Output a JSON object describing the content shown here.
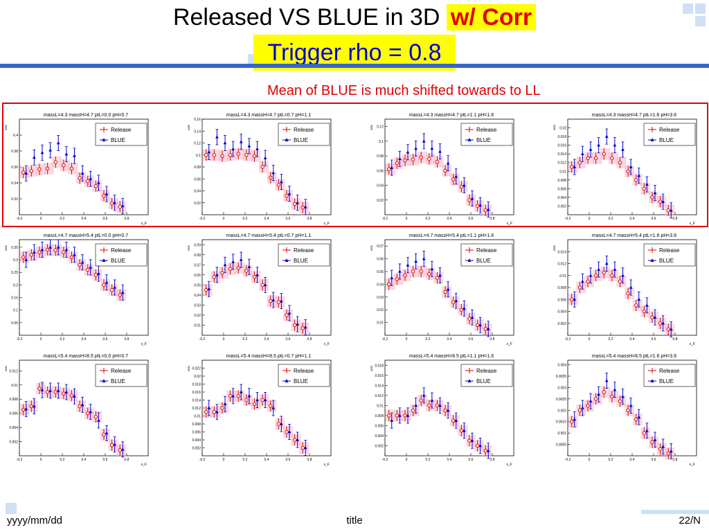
{
  "slide": {
    "title_main": "Released VS BLUE in 3D",
    "title_corr": "w/ Corr",
    "subtitle": "Trigger rho = 0.8",
    "note": "Mean of BLUE is much shifted towards to LL"
  },
  "footer": {
    "date": "yyyy/mm/dd",
    "title": "title",
    "page": "22/N"
  },
  "colors": {
    "release": "#e00000",
    "blue": "#0000cc",
    "band": "#f6b8c8",
    "highlight": "#ffff00",
    "accent": "#3a66c8"
  },
  "chart_data": [
    {
      "type": "scatter",
      "title": "massL=4.3 massH=4.7 ptL=0.0 pH=0.7",
      "ylabel": "sstc",
      "xlabel": "x_F",
      "xlim": [
        -0.2,
        1.0
      ],
      "ylim": [
        0.3,
        0.42
      ],
      "ytick_labels": [
        "0.32",
        "0.34",
        "0.36",
        "0.38",
        "0.4"
      ],
      "series": [
        {
          "name": "Release",
          "y": [
            0.353,
            0.355,
            0.357,
            0.358,
            0.366,
            0.362,
            0.358,
            0.346,
            0.342,
            0.336,
            0.324,
            0.314,
            0.31
          ]
        },
        {
          "name": "BLUE",
          "y": [
            0.352,
            0.372,
            0.378,
            0.381,
            0.39,
            0.376,
            0.374,
            0.352,
            0.345,
            0.34,
            0.326,
            0.315,
            0.311
          ]
        }
      ]
    },
    {
      "type": "scatter",
      "title": "massL=4.3 massH=4.7 ptL=0.7 pH=1.1",
      "ylabel": "sstc",
      "xlabel": "x_F",
      "xlim": [
        -0.2,
        1.0
      ],
      "ylim": [
        0,
        0.16
      ],
      "ytick_labels": [
        "0.02",
        "0.04",
        "0.06",
        "0.08",
        "0.1",
        "0.12",
        "0.14",
        "0.16"
      ],
      "series": [
        {
          "name": "Release",
          "y": [
            0.1,
            0.1,
            0.098,
            0.1,
            0.102,
            0.1,
            0.098,
            0.08,
            0.062,
            0.05,
            0.032,
            0.018,
            0.012
          ]
        },
        {
          "name": "BLUE",
          "y": [
            0.105,
            0.13,
            0.12,
            0.11,
            0.122,
            0.115,
            0.11,
            0.095,
            0.07,
            0.055,
            0.035,
            0.02,
            0.013
          ]
        }
      ]
    },
    {
      "type": "scatter",
      "title": "massL=4.3 massH=4.7 ptL=1.1 pH=1.6",
      "ylabel": "sstc",
      "xlabel": "x_F",
      "xlim": [
        -0.2,
        1.0
      ],
      "ylim": [
        0,
        0.13
      ],
      "ytick_labels": [
        "0.02",
        "0.04",
        "0.06",
        "0.08",
        "0.1",
        "0.12"
      ],
      "series": [
        {
          "name": "Release",
          "y": [
            0.062,
            0.07,
            0.074,
            0.075,
            0.078,
            0.076,
            0.072,
            0.06,
            0.048,
            0.038,
            0.02,
            0.012,
            0.006
          ]
        },
        {
          "name": "BLUE",
          "y": [
            0.064,
            0.076,
            0.085,
            0.09,
            0.1,
            0.09,
            0.086,
            0.07,
            0.052,
            0.04,
            0.022,
            0.013,
            0.007
          ]
        }
      ]
    },
    {
      "type": "scatter",
      "title": "massL=4.3 massH=4.7 ptL=1.6 pH=3.6",
      "ylabel": "sstc",
      "xlabel": "x_F",
      "xlim": [
        -0.2,
        1.0
      ],
      "ylim": [
        0,
        0.022
      ],
      "ytick_labels": [
        "0.002",
        "0.004",
        "0.006",
        "0.008",
        "0.01",
        "0.012",
        "0.014",
        "0.016",
        "0.018",
        "0.02"
      ],
      "series": [
        {
          "name": "Release",
          "y": [
            0.011,
            0.012,
            0.013,
            0.013,
            0.014,
            0.013,
            0.012,
            0.01,
            0.008,
            0.006,
            0.004,
            0.003,
            0.001
          ]
        },
        {
          "name": "BLUE",
          "y": [
            0.011,
            0.014,
            0.015,
            0.016,
            0.018,
            0.016,
            0.015,
            0.011,
            0.009,
            0.007,
            0.005,
            0.003,
            0.001
          ]
        }
      ]
    },
    {
      "type": "scatter",
      "title": "massL=4.7 massH=5.4 ptL=0.0 pH=0.7",
      "ylabel": "sstc",
      "xlabel": "x_F",
      "xlim": [
        -0.2,
        1.0
      ],
      "ylim": [
        0,
        0.38
      ],
      "ytick_labels": [
        "0.05",
        "0.1",
        "0.15",
        "0.2",
        "0.25",
        "0.3",
        "0.35"
      ],
      "series": [
        {
          "name": "Release",
          "y": [
            0.31,
            0.32,
            0.33,
            0.34,
            0.338,
            0.33,
            0.31,
            0.28,
            0.26,
            0.24,
            0.2,
            0.18,
            0.16
          ]
        },
        {
          "name": "BLUE",
          "y": [
            0.3,
            0.33,
            0.34,
            0.35,
            0.35,
            0.34,
            0.32,
            0.29,
            0.27,
            0.245,
            0.21,
            0.19,
            0.17
          ]
        }
      ]
    },
    {
      "type": "scatter",
      "title": "massL=4.7 massH=5.4 ptL=0.7 pH=1.1",
      "ylabel": "sstc",
      "xlabel": "x_F",
      "xlim": [
        -0.2,
        1.0
      ],
      "ylim": [
        0,
        0.095
      ],
      "ytick_labels": [
        "0.01",
        "0.02",
        "0.03",
        "0.04",
        "0.05",
        "0.06",
        "0.07",
        "0.08",
        "0.09"
      ],
      "series": [
        {
          "name": "Release",
          "y": [
            0.045,
            0.058,
            0.062,
            0.066,
            0.067,
            0.064,
            0.058,
            0.05,
            0.034,
            0.033,
            0.02,
            0.01,
            0.007
          ]
        },
        {
          "name": "BLUE",
          "y": [
            0.046,
            0.06,
            0.07,
            0.073,
            0.075,
            0.068,
            0.06,
            0.05,
            0.035,
            0.034,
            0.022,
            0.011,
            0.008
          ]
        }
      ]
    },
    {
      "type": "scatter",
      "title": "massL=4.7 massH=5.4 ptL=1.1 pH=1.6",
      "ylabel": "sstc",
      "xlabel": "x_F",
      "xlim": [
        -0.2,
        1.0
      ],
      "ylim": [
        0,
        0.075
      ],
      "ytick_labels": [
        "0.01",
        "0.02",
        "0.03",
        "0.04",
        "0.05",
        "0.06",
        "0.07"
      ],
      "series": [
        {
          "name": "Release",
          "y": [
            0.04,
            0.044,
            0.047,
            0.05,
            0.05,
            0.048,
            0.045,
            0.034,
            0.026,
            0.02,
            0.013,
            0.008,
            0.005
          ]
        },
        {
          "name": "BLUE",
          "y": [
            0.045,
            0.05,
            0.055,
            0.058,
            0.06,
            0.052,
            0.047,
            0.036,
            0.027,
            0.021,
            0.014,
            0.008,
            0.005
          ]
        }
      ]
    },
    {
      "type": "scatter",
      "title": "massL=4.7 massH=5.4 ptL=1.6 pH=3.6",
      "ylabel": "sstc",
      "xlabel": "x_F",
      "xlim": [
        -0.2,
        1.0
      ],
      "ylim": [
        0,
        0.016
      ],
      "ytick_labels": [
        "0.002",
        "0.004",
        "0.006",
        "0.008",
        "0.01",
        "0.012",
        "0.014"
      ],
      "series": [
        {
          "name": "Release",
          "y": [
            0.006,
            0.008,
            0.009,
            0.01,
            0.0105,
            0.01,
            0.009,
            0.007,
            0.005,
            0.004,
            0.003,
            0.002,
            0.001
          ]
        },
        {
          "name": "BLUE",
          "y": [
            0.006,
            0.009,
            0.01,
            0.011,
            0.012,
            0.011,
            0.01,
            0.008,
            0.006,
            0.005,
            0.003,
            0.002,
            0.001
          ]
        }
      ]
    },
    {
      "type": "scatter",
      "title": "massL=5.4 massH=8.5 ptL=0.0 pH=0.7",
      "ylabel": "sstc",
      "xlabel": "x_F",
      "xlim": [
        -0.2,
        1.0
      ],
      "ylim": [
        0,
        0.0135
      ],
      "ytick_labels": [
        "0.002",
        "0.004",
        "0.006",
        "0.008",
        "0.01",
        "0.012"
      ],
      "series": [
        {
          "name": "Release",
          "y": [
            0.0065,
            0.007,
            0.0095,
            0.009,
            0.009,
            0.0088,
            0.0085,
            0.007,
            0.006,
            0.0055,
            0.003,
            0.0015,
            0.0008
          ]
        },
        {
          "name": "BLUE",
          "y": [
            0.0066,
            0.007,
            0.0093,
            0.0092,
            0.0092,
            0.009,
            0.0084,
            0.0072,
            0.0062,
            0.005,
            0.0032,
            0.0016,
            0.0009
          ]
        }
      ]
    },
    {
      "type": "scatter",
      "title": "massL=5.4 massH=8.5 ptL=0.7 pH=1.1",
      "ylabel": "sstc",
      "xlabel": "x_F",
      "xlim": [
        -0.2,
        1.0
      ],
      "ylim": [
        0,
        0.024
      ],
      "ytick_labels": [
        "0.002",
        "0.004",
        "0.006",
        "0.008",
        "0.01",
        "0.012",
        "0.014",
        "0.016",
        "0.018",
        "0.02",
        "0.022"
      ],
      "series": [
        {
          "name": "Release",
          "y": [
            0.011,
            0.011,
            0.012,
            0.015,
            0.015,
            0.014,
            0.013,
            0.014,
            0.0125,
            0.008,
            0.006,
            0.004,
            0.002
          ]
        },
        {
          "name": "BLUE",
          "y": [
            0.012,
            0.011,
            0.013,
            0.015,
            0.016,
            0.015,
            0.014,
            0.014,
            0.012,
            0.008,
            0.006,
            0.004,
            0.002
          ]
        }
      ]
    },
    {
      "type": "scatter",
      "title": "massL=5.4 massH=8.5 ptL=1.1 pH=1.6",
      "ylabel": "sstc",
      "xlabel": "x_F",
      "xlim": [
        -0.2,
        1.0
      ],
      "ylim": [
        0,
        0.019
      ],
      "ytick_labels": [
        "0.002",
        "0.004",
        "0.006",
        "0.008",
        "0.01",
        "0.012",
        "0.014",
        "0.016",
        "0.018"
      ],
      "series": [
        {
          "name": "Release",
          "y": [
            0.008,
            0.008,
            0.008,
            0.009,
            0.011,
            0.01,
            0.01,
            0.009,
            0.007,
            0.005,
            0.003,
            0.002,
            0.001
          ]
        },
        {
          "name": "BLUE",
          "y": [
            0.007,
            0.008,
            0.008,
            0.01,
            0.012,
            0.011,
            0.01,
            0.009,
            0.007,
            0.005,
            0.003,
            0.002,
            0.001
          ]
        }
      ]
    },
    {
      "type": "scatter",
      "title": "massL=5.4 massH=8.5 ptL=1.6 pH=3.6",
      "ylabel": "",
      "xlabel": "x_F",
      "xlim": [
        -0.2,
        1.0
      ],
      "ylim": [
        0,
        0.0042
      ],
      "ytick_labels": [
        "0.0005",
        "0.001",
        "0.0015",
        "0.002",
        "0.0025",
        "0.003",
        "0.0035",
        "0.004"
      ],
      "series": [
        {
          "name": "Release",
          "y": [
            0.0015,
            0.002,
            0.0022,
            0.0025,
            0.0028,
            0.0026,
            0.0024,
            0.002,
            0.0016,
            0.001,
            0.0006,
            0.0003,
            0.0001
          ]
        },
        {
          "name": "BLUE",
          "y": [
            0.0016,
            0.0021,
            0.0024,
            0.0027,
            0.0033,
            0.0029,
            0.0026,
            0.0022,
            0.0017,
            0.0011,
            0.0007,
            0.0004,
            0.0002
          ]
        }
      ]
    }
  ]
}
